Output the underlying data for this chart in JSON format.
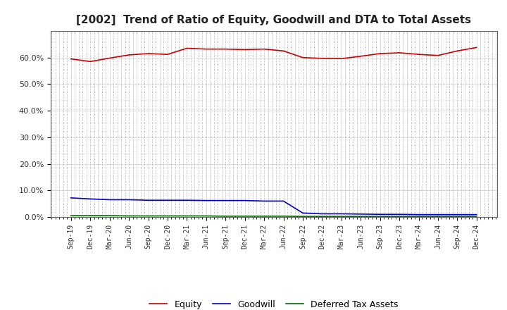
{
  "title": "[2002]  Trend of Ratio of Equity, Goodwill and DTA to Total Assets",
  "title_fontsize": 11,
  "background_color": "#ffffff",
  "plot_bg_color": "#ffffff",
  "grid_color": "#999999",
  "x_labels": [
    "Sep-19",
    "Dec-19",
    "Mar-20",
    "Jun-20",
    "Sep-20",
    "Dec-20",
    "Mar-21",
    "Jun-21",
    "Sep-21",
    "Dec-21",
    "Mar-22",
    "Jun-22",
    "Sep-22",
    "Dec-22",
    "Mar-23",
    "Jun-23",
    "Sep-23",
    "Dec-23",
    "Mar-24",
    "Jun-24",
    "Sep-24",
    "Dec-24"
  ],
  "equity": [
    59.5,
    58.5,
    59.8,
    61.0,
    61.5,
    61.2,
    63.5,
    63.2,
    63.2,
    63.0,
    63.2,
    62.5,
    60.0,
    59.7,
    59.6,
    60.5,
    61.5,
    61.8,
    61.2,
    60.8,
    62.5,
    63.8
  ],
  "goodwill": [
    7.2,
    6.8,
    6.5,
    6.5,
    6.3,
    6.3,
    6.3,
    6.2,
    6.2,
    6.2,
    6.0,
    6.0,
    1.5,
    1.2,
    1.2,
    1.1,
    1.0,
    1.0,
    0.9,
    0.9,
    0.9,
    0.9
  ],
  "dta": [
    0.5,
    0.5,
    0.5,
    0.4,
    0.4,
    0.4,
    0.4,
    0.4,
    0.3,
    0.3,
    0.3,
    0.3,
    0.2,
    0.2,
    0.2,
    0.2,
    0.2,
    0.2,
    0.2,
    0.2,
    0.2,
    0.2
  ],
  "equity_color": "#cc0000",
  "goodwill_color": "#0000cc",
  "dta_color": "#006600",
  "legend_labels": [
    "Equity",
    "Goodwill",
    "Deferred Tax Assets"
  ],
  "ylim": [
    0,
    70
  ],
  "yticks": [
    0,
    10,
    20,
    30,
    40,
    50,
    60
  ],
  "ytick_labels": [
    "0.0%",
    "10.0%",
    "20.0%",
    "30.0%",
    "40.0%",
    "50.0%",
    "60.0%"
  ]
}
